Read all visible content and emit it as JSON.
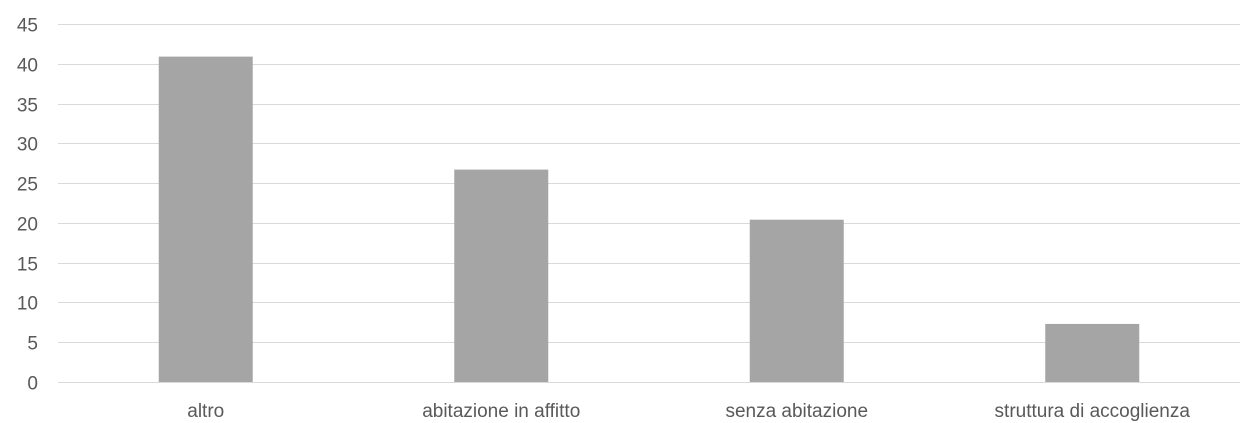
{
  "chart_data": {
    "type": "bar",
    "title": "",
    "xlabel": "",
    "ylabel": "",
    "categories": [
      "altro",
      "abitazione in affitto",
      "senza abitazione",
      "struttura di accoglienza"
    ],
    "values": [
      40.9,
      26.7,
      20.4,
      7.3
    ],
    "ylim": [
      0,
      45
    ],
    "yticks": [
      0,
      5,
      10,
      15,
      20,
      25,
      30,
      35,
      40,
      45
    ],
    "grid": true,
    "legend": "none",
    "bar_color": "#a5a5a5",
    "grid_color": "#d9d9d9",
    "text_color": "#595959"
  }
}
